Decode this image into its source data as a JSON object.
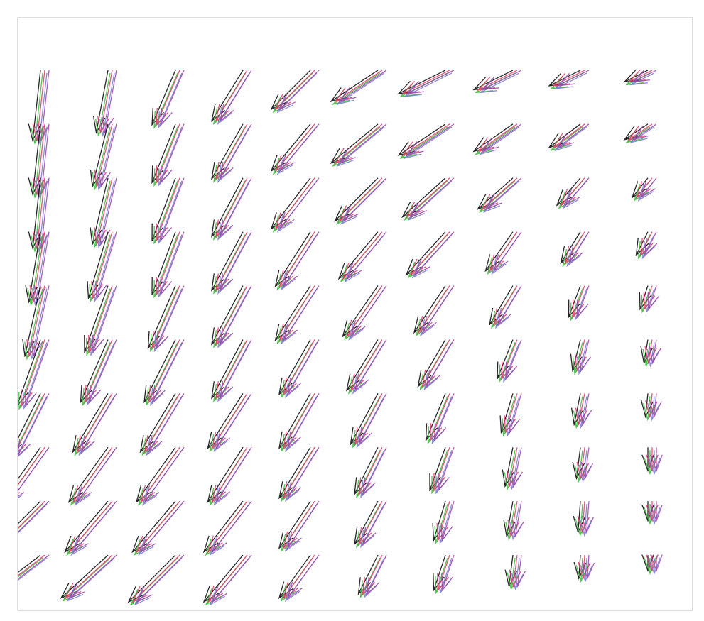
{
  "chart_data": {
    "type": "quiver",
    "x": [
      0,
      1,
      2,
      3,
      4,
      5,
      6,
      7,
      8,
      9
    ],
    "y": [
      9,
      8,
      7,
      6,
      5,
      4,
      3,
      2,
      1,
      0
    ],
    "xlim": [
      -0.4,
      9.6
    ],
    "ylim": [
      -1,
      10
    ],
    "colors": [
      "#000000",
      "#33bb33",
      "#e8336a",
      "#7777cc",
      "#9944aa"
    ],
    "u": [
      [
        -1,
        -1.5,
        -3,
        -4,
        -5,
        -6,
        -6,
        -5,
        -4,
        -3
      ],
      [
        -1,
        -2,
        -3,
        -4,
        -5,
        -6,
        -6,
        -5,
        -4,
        -3
      ],
      [
        -1,
        -2,
        -3,
        -4,
        -5,
        -5.5,
        -5.5,
        -4.5,
        -3,
        -2
      ],
      [
        -1.5,
        -2.5,
        -3,
        -4,
        -4.5,
        -5,
        -5,
        -3.5,
        -2.5,
        -1.5
      ],
      [
        -2,
        -3,
        -3.5,
        -4,
        -4.5,
        -4.5,
        -4,
        -3,
        -1.5,
        -1
      ],
      [
        -3,
        -3.5,
        -4,
        -4,
        -4,
        -4,
        -3.5,
        -2,
        -1,
        -0.5
      ],
      [
        -4,
        -4.5,
        -4.5,
        -4.5,
        -4,
        -3.5,
        -2.5,
        -1.5,
        -0.8,
        -0.3
      ],
      [
        -5,
        -5,
        -5,
        -4.5,
        -4,
        -3,
        -2,
        -1,
        -0.5,
        0
      ],
      [
        -6,
        -5.5,
        -5.5,
        -5,
        -4,
        -3,
        -1.5,
        -0.8,
        -0.3,
        0
      ],
      [
        -6.5,
        -6,
        -6,
        -5,
        -4,
        -2.5,
        -1.5,
        -0.5,
        -0.2,
        0
      ]
    ],
    "v": [
      [
        -9,
        -8,
        -7,
        -6.5,
        -5,
        -4,
        -3,
        -2.5,
        -2,
        -1.5
      ],
      [
        -9,
        -8,
        -7.5,
        -7,
        -6,
        -5,
        -4,
        -3.5,
        -3,
        -2
      ],
      [
        -9,
        -8.5,
        -8,
        -7.5,
        -6.5,
        -5.5,
        -5,
        -4,
        -3.5,
        -2.5
      ],
      [
        -9,
        -8.5,
        -8,
        -7.5,
        -7,
        -6,
        -5.5,
        -5,
        -4,
        -3
      ],
      [
        -9,
        -8.5,
        -8,
        -7.5,
        -7,
        -6.5,
        -6,
        -5,
        -4,
        -3
      ],
      [
        -8.5,
        -8,
        -8,
        -7.5,
        -7,
        -6.5,
        -6,
        -5,
        -4,
        -3
      ],
      [
        -8,
        -7.5,
        -7.5,
        -7,
        -7,
        -6.5,
        -6,
        -5,
        -4,
        -3
      ],
      [
        -7,
        -7,
        -7,
        -7,
        -6.5,
        -6,
        -5.5,
        -5,
        -4,
        -3
      ],
      [
        -6,
        -6.5,
        -6.5,
        -6.5,
        -6,
        -5.5,
        -5,
        -4.5,
        -4,
        -2.5
      ],
      [
        -5,
        -5.5,
        -6,
        -6,
        -5.5,
        -5,
        -4.5,
        -4,
        -3,
        -2
      ]
    ]
  }
}
